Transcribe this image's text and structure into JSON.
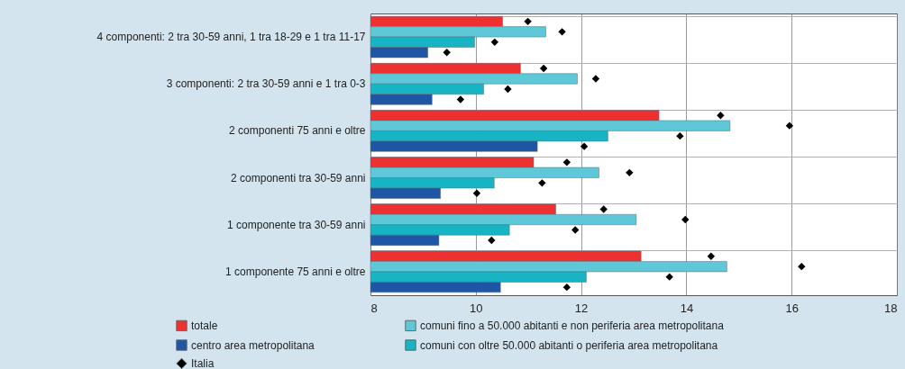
{
  "chart_data": {
    "type": "bar",
    "orientation": "horizontal",
    "categories": [
      "4 componenti: 2 tra 30-59 anni, 1 tra 18-29 e 1 tra 11-17",
      "3 componenti: 2 tra 30-59 anni e 1 tra  0-3",
      "2 componenti 75 anni e oltre",
      "2 componenti tra 30-59 anni",
      "1 componente tra 30-59 anni",
      "1 componente 75 anni e oltre"
    ],
    "series": [
      {
        "name": "totale",
        "color": "#ee3030",
        "values": [
          10.51,
          10.85,
          13.48,
          11.1,
          11.52,
          13.14
        ]
      },
      {
        "name": "comuni fino a 50.000 abitanti e non periferia area metropolitana",
        "color": "#5ec8d8",
        "values": [
          11.33,
          11.93,
          14.83,
          12.34,
          13.05,
          14.77
        ]
      },
      {
        "name": "comuni con oltre 50.000 abitanti o periferia area metropolitana",
        "color": "#17b4c4",
        "values": [
          9.98,
          10.15,
          12.51,
          10.35,
          10.64,
          12.1
        ]
      },
      {
        "name": "centro area metropolitana",
        "color": "#1f55a5",
        "values": [
          9.09,
          9.17,
          11.17,
          9.33,
          9.3,
          10.47
        ]
      },
      {
        "name": "Italia",
        "type": "scatter",
        "color": "#000000",
        "values": [
          10.99,
          11.29,
          14.65,
          11.73,
          12.43,
          14.47
        ]
      },
      {
        "type": "scatter",
        "color": "#000000",
        "values": [
          11.64,
          12.28,
          15.96,
          12.92,
          13.98,
          16.19
        ]
      },
      {
        "type": "scatter",
        "color": "#000000",
        "values": [
          10.36,
          10.61,
          13.88,
          11.26,
          11.89,
          13.68
        ]
      },
      {
        "type": "scatter",
        "color": "#000000",
        "values": [
          9.45,
          9.71,
          12.06,
          10.02,
          10.3,
          11.73
        ]
      }
    ],
    "xlim": [
      8,
      18
    ],
    "xticks": [
      8,
      10,
      12,
      14,
      16,
      18
    ],
    "grid": true,
    "legend": "bottom",
    "marker": "diamond"
  }
}
